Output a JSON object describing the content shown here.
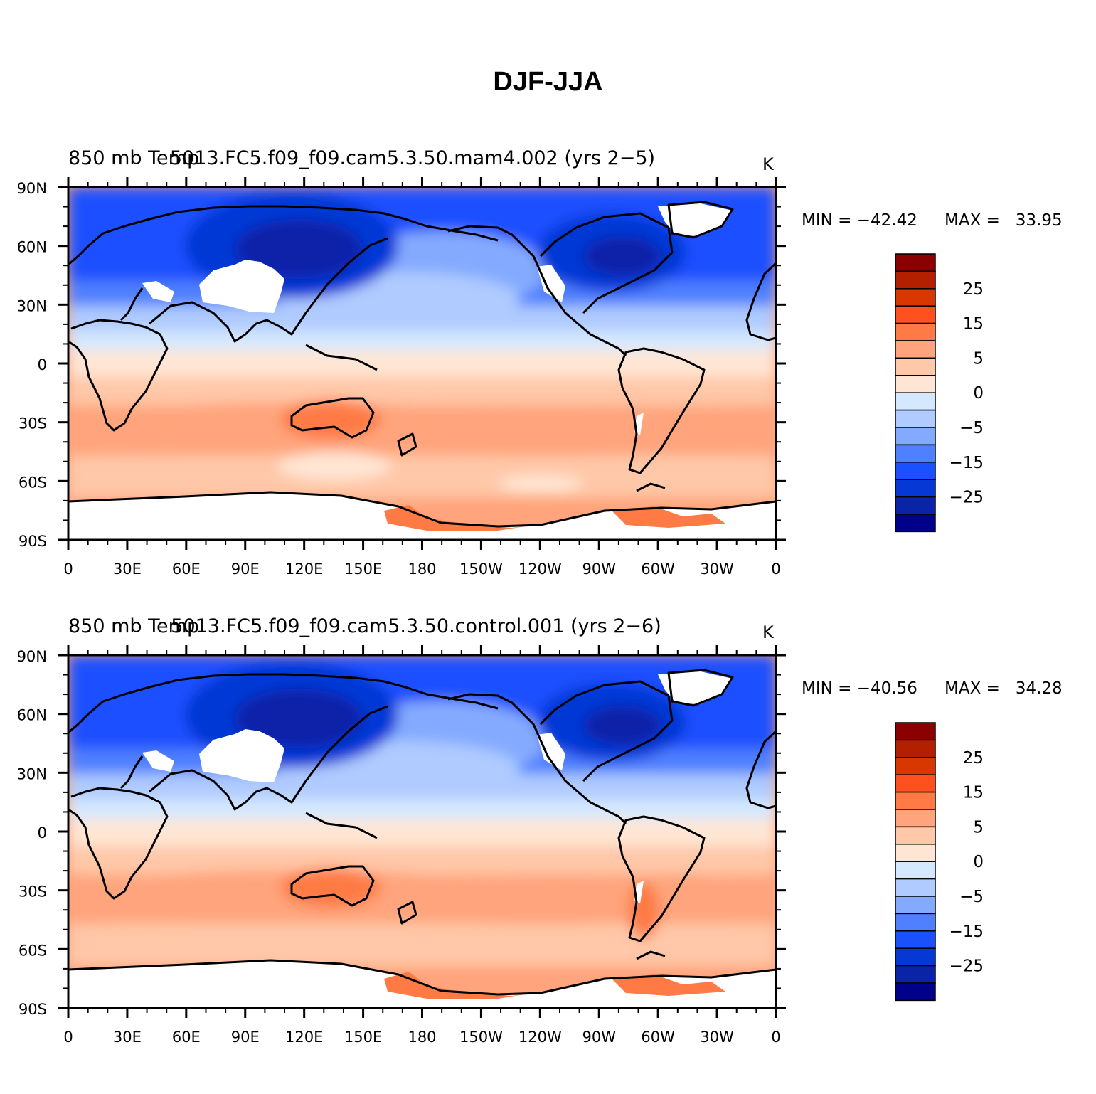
{
  "title": "DJF-JJA",
  "panels": [
    {
      "left_label": "850 mb Temp",
      "center_label": "5013.FC5.f09_f09.cam5.3.50.mam4.002 (yrs 2−5)",
      "units": "K",
      "min_text": "MIN = −42.42",
      "max_text": "MAX =   33.95",
      "min": -42.42,
      "max": 33.95
    },
    {
      "left_label": "850 mb Temp",
      "center_label": "5013.FC5.f09_f09.cam5.3.50.control.001 (yrs 2−6)",
      "units": "K",
      "min_text": "MIN = −40.56",
      "max_text": "MAX =   34.28",
      "min": -40.56,
      "max": 34.28
    }
  ],
  "lat_ticks": [
    "90N",
    "60N",
    "30N",
    "0",
    "30S",
    "60S",
    "90S"
  ],
  "lon_ticks": [
    "0",
    "30E",
    "60E",
    "90E",
    "120E",
    "150E",
    "180",
    "150W",
    "120W",
    "90W",
    "60W",
    "30W",
    "0"
  ],
  "colorbar": {
    "colors": [
      "#8b0000",
      "#b22000",
      "#d83800",
      "#ff5020",
      "#ff7a45",
      "#ffa47c",
      "#ffc8a8",
      "#ffe6d4",
      "#d4e8ff",
      "#afcbff",
      "#84aaff",
      "#4f80ff",
      "#1b50ff",
      "#0638d6",
      "#0a24a8",
      "#00008b"
    ],
    "labels": [
      "25",
      "15",
      "5",
      "0",
      "−5",
      "−15",
      "−25"
    ]
  },
  "legend_colors": {
    "deep_cold": "#0a24a8",
    "cold": "#1b50ff",
    "cool": "#84aaff",
    "neutral_cool": "#d4e8ff",
    "neutral_warm": "#ffe6d4",
    "warm": "#ffa47c",
    "hot": "#ff7a45",
    "missing": "#ffffff"
  }
}
